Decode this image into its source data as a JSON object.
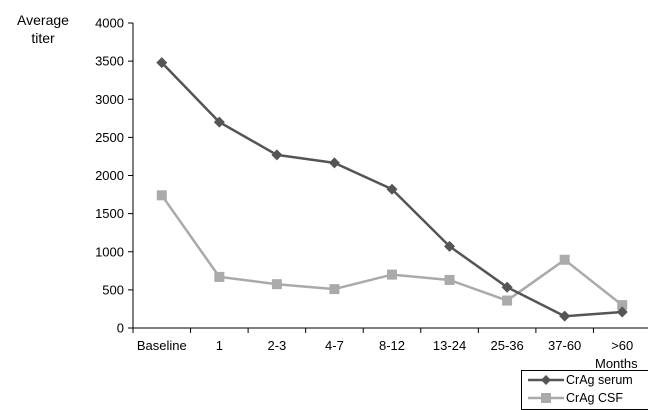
{
  "chart_data": {
    "type": "line",
    "ylabel_line1": "Average",
    "ylabel_line2": "titer",
    "xlabel": "Months",
    "categories": [
      "Baseline",
      "1",
      "2-3",
      "4-7",
      "8-12",
      "13-24",
      "25-36",
      "37-60",
      ">60"
    ],
    "yticks": [
      0,
      500,
      1000,
      1500,
      2000,
      2500,
      3000,
      3500,
      4000
    ],
    "ylim": [
      0,
      4000
    ],
    "grid": false,
    "legend_position": "bottom-right",
    "series": [
      {
        "name": "CrAg serum",
        "marker": "diamond",
        "color": "#555555",
        "values": [
          3480,
          2700,
          2270,
          2165,
          1820,
          1070,
          535,
          155,
          210
        ]
      },
      {
        "name": "CrAg CSF",
        "marker": "square",
        "color": "#aaaaaa",
        "values": [
          1740,
          670,
          575,
          510,
          700,
          630,
          360,
          895,
          300
        ]
      }
    ]
  }
}
